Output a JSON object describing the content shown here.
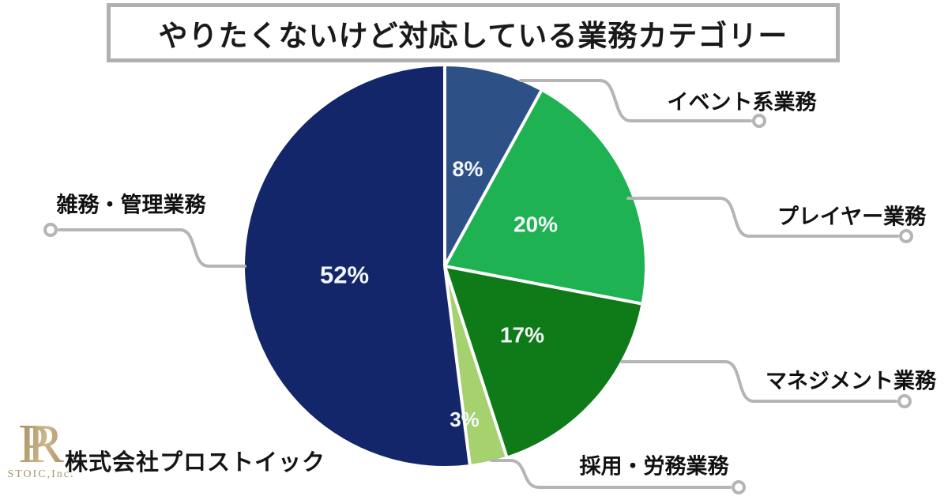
{
  "chart_data": {
    "type": "pie",
    "title": "やりたくないけど対応している業務カテゴリー",
    "unit": "%",
    "direction": "clockwise",
    "start_angle": "12-oclock",
    "legend_position": "callouts",
    "slices": [
      {
        "label": "イベント系業務",
        "value": 8,
        "color": "#2D5087"
      },
      {
        "label": "プレイヤー業務",
        "value": 20,
        "color": "#1EB252"
      },
      {
        "label": "マネジメント業務",
        "value": 17,
        "color": "#0E7A18"
      },
      {
        "label": "採用・労務業務",
        "value": 3,
        "color": "#A5D16E"
      },
      {
        "label": "雑務・管理業務",
        "value": 52,
        "color": "#132669"
      }
    ],
    "value_label_color": "#F2F6F9",
    "slice_divider_color": "#FFFFFF",
    "callout_line_color": "#B5B5B5"
  },
  "branding": {
    "logo_p": "P",
    "logo_r": "R",
    "logo_sub": "STOIC,Inc.",
    "company_name": "株式会社プロストイック"
  }
}
